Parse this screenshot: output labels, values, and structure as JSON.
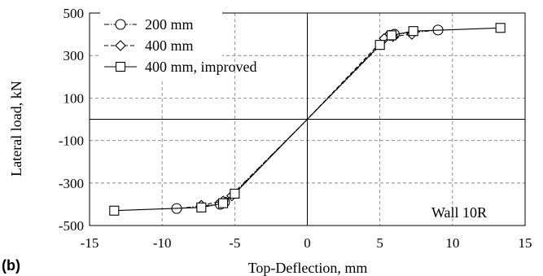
{
  "panel_label": "(b)",
  "chart_data": {
    "type": "line",
    "xlabel": "Top-Deflection, mm",
    "ylabel": "Lateral load, kN",
    "xlim": [
      -15,
      15
    ],
    "ylim": [
      -500,
      500
    ],
    "xticks": [
      -15,
      -10,
      -5,
      0,
      5,
      10,
      15
    ],
    "yticks": [
      -500,
      -300,
      -100,
      100,
      300,
      500
    ],
    "grid": "dashed",
    "legend_position": "top-left",
    "annotation": "Wall 10R",
    "series": [
      {
        "name": "200 mm",
        "marker": "circle",
        "line": "dash-dot",
        "x": [
          -9.0,
          -6.0,
          -5.7,
          0,
          5.7,
          6.0,
          9.0
        ],
        "y": [
          -420,
          -400,
          -390,
          0,
          395,
          400,
          420
        ],
        "marked": [
          true,
          true,
          true,
          false,
          true,
          true,
          true
        ]
      },
      {
        "name": "400 mm",
        "marker": "diamond",
        "line": "dashed",
        "x": [
          -7.3,
          -5.8,
          -5.2,
          0,
          5.3,
          5.9,
          7.2
        ],
        "y": [
          -405,
          -385,
          -360,
          0,
          380,
          390,
          400
        ],
        "marked": [
          true,
          true,
          true,
          false,
          true,
          true,
          true
        ]
      },
      {
        "name": "400 mm, improved",
        "marker": "square",
        "line": "solid",
        "x": [
          -13.3,
          -7.3,
          -5.8,
          -5.0,
          0,
          5.0,
          5.8,
          7.3,
          13.3
        ],
        "y": [
          -430,
          -415,
          -395,
          -350,
          0,
          350,
          395,
          415,
          430
        ],
        "marked": [
          true,
          true,
          true,
          true,
          false,
          true,
          true,
          true,
          true
        ]
      }
    ]
  }
}
